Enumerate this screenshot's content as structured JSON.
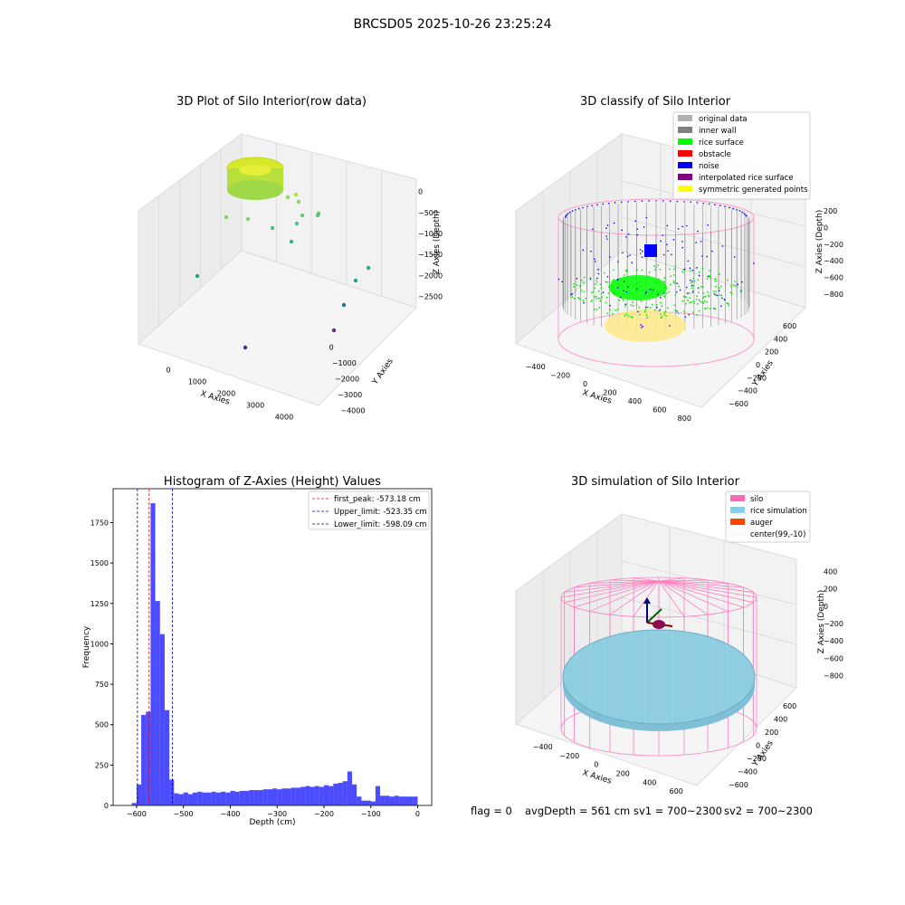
{
  "figure": {
    "suptitle": "BRCSD05 2025-10-26 23:25:24",
    "footer": {
      "flag": "flag = 0",
      "avg_depth": "avgDepth = 561 cm",
      "sv1": "sv1 = 700~2300",
      "sv2": "sv2 = 700~2300"
    }
  },
  "plot1": {
    "title": "3D Plot of Silo Interior(row data)",
    "xlabel": "X Axies",
    "ylabel": "Y Axies",
    "zlabel": "Z Axies (Depth)",
    "xticks": [
      "0",
      "1000",
      "2000",
      "3000",
      "4000"
    ],
    "yticks": [
      "0",
      "−1000",
      "−2000",
      "−3000",
      "−4000"
    ],
    "zticks": [
      "0",
      "−500",
      "−1000",
      "−1500",
      "−2000",
      "−2500"
    ]
  },
  "plot2": {
    "title": "3D classify of Silo Interior",
    "xlabel": "X Axies",
    "ylabel": "Y Axies",
    "zlabel": "Z Axies (Depth)",
    "xticks": [
      "−400",
      "−200",
      "0",
      "200",
      "400",
      "600",
      "800"
    ],
    "yticks": [
      "600",
      "400",
      "200",
      "0",
      "−200",
      "−400",
      "−600"
    ],
    "zticks": [
      "200",
      "0",
      "−200",
      "−400",
      "−600",
      "−800"
    ],
    "legend": [
      {
        "label": "original data",
        "color": "#b0b0b0"
      },
      {
        "label": "inner wall",
        "color": "#808080"
      },
      {
        "label": "rice surface",
        "color": "#00ff00"
      },
      {
        "label": "obstacle",
        "color": "#ff0000"
      },
      {
        "label": "noise",
        "color": "#0000ff"
      },
      {
        "label": "interpolated rice surface",
        "color": "#800080"
      },
      {
        "label": "symmetric generated points",
        "color": "#ffff00"
      }
    ]
  },
  "plot4": {
    "title": "3D simulation of Silo Interior",
    "xlabel": "X Axies",
    "ylabel": "Y Axies",
    "zlabel": "Z Axies (Depth)",
    "xticks": [
      "−400",
      "−200",
      "0",
      "200",
      "400",
      "600"
    ],
    "yticks": [
      "600",
      "400",
      "200",
      "0",
      "−200",
      "−400",
      "−600"
    ],
    "zticks": [
      "400",
      "200",
      "0",
      "−200",
      "−400",
      "−600",
      "−800"
    ],
    "legend": [
      {
        "label": "silo",
        "color": "#ff69b4"
      },
      {
        "label": "rice simulation",
        "color": "#87ceeb"
      },
      {
        "label": "auger",
        "color": "#ff4500"
      },
      {
        "label": "center(99,-10)",
        "color": ""
      }
    ]
  },
  "chart_data": {
    "type": "bar",
    "title": "Histogram of Z-Axies (Height) Values",
    "xlabel": "Depth (cm)",
    "ylabel": "Frequency",
    "xlim": [
      -650,
      30
    ],
    "ylim": [
      0,
      1960
    ],
    "bin_width": 10,
    "xticks": [
      -600,
      -500,
      -400,
      -300,
      -200,
      -100,
      0
    ],
    "xtick_labels": [
      "−600",
      "−500",
      "−400",
      "−300",
      "−200",
      "−100",
      "0"
    ],
    "yticks": [
      0,
      250,
      500,
      750,
      1000,
      1250,
      1500,
      1750
    ],
    "bins_x": [
      -605,
      -595,
      -585,
      -575,
      -565,
      -555,
      -545,
      -535,
      -525,
      -515,
      -505,
      -495,
      -485,
      -475,
      -465,
      -455,
      -445,
      -435,
      -425,
      -415,
      -405,
      -395,
      -385,
      -375,
      -365,
      -355,
      -345,
      -335,
      -325,
      -315,
      -305,
      -295,
      -285,
      -275,
      -265,
      -255,
      -245,
      -235,
      -225,
      -215,
      -205,
      -195,
      -185,
      -175,
      -165,
      -155,
      -145,
      -135,
      -125,
      -115,
      -105,
      -95,
      -85,
      -75,
      -65,
      -55,
      -45,
      -35,
      -25,
      -15,
      -5
    ],
    "values": [
      15,
      130,
      560,
      580,
      1870,
      1265,
      1060,
      590,
      160,
      75,
      70,
      80,
      70,
      80,
      85,
      80,
      80,
      85,
      80,
      85,
      80,
      90,
      85,
      90,
      90,
      95,
      95,
      95,
      100,
      100,
      105,
      100,
      105,
      105,
      110,
      110,
      115,
      120,
      115,
      120,
      115,
      125,
      120,
      135,
      140,
      150,
      210,
      130,
      55,
      30,
      30,
      25,
      120,
      60,
      60,
      55,
      60,
      55,
      55,
      55,
      55
    ],
    "color": "#0000ff",
    "lines": [
      {
        "label": "first_peak: -573.18 cm",
        "x": -573.18,
        "color": "#ff0000"
      },
      {
        "label": "Upper_limit: -523.35 cm",
        "x": -523.35,
        "color": "#0000cd"
      },
      {
        "label": "Lower_limit: -598.09 cm",
        "x": -598.09,
        "color": "#00008b"
      }
    ]
  }
}
